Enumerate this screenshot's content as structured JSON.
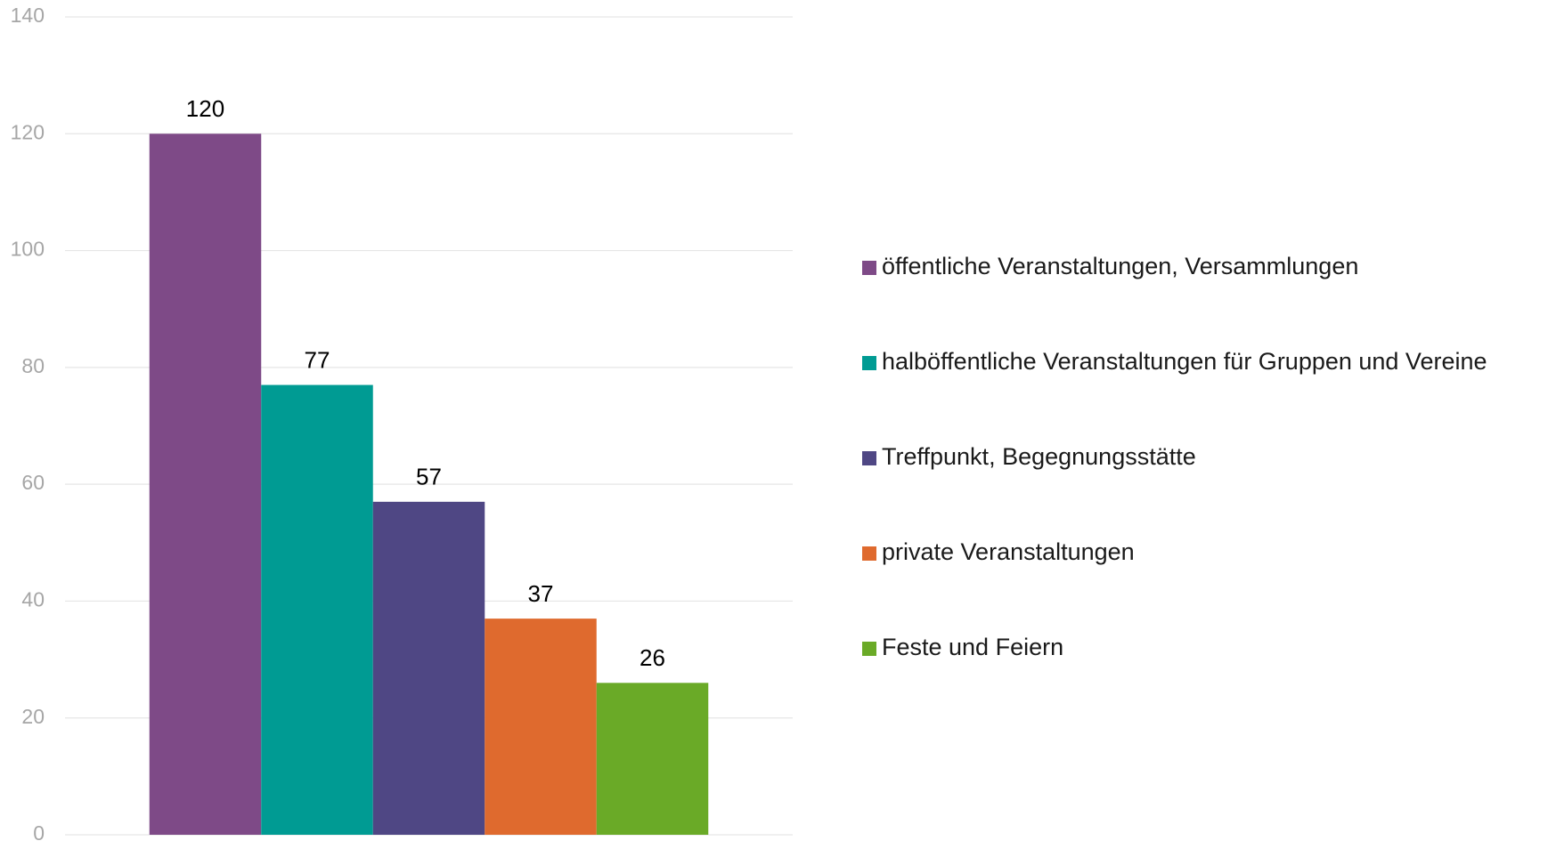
{
  "chart_data": {
    "type": "bar",
    "categories": [
      null
    ],
    "series": [
      {
        "name": "öffentliche Veranstaltungen, Versammlungen",
        "color": "#7e4a87",
        "values": [
          120
        ]
      },
      {
        "name": "halböffentliche Veranstaltungen für Gruppen und Vereine",
        "color": "#009b93",
        "values": [
          77
        ]
      },
      {
        "name": "Treffpunkt, Begegnungsstätte",
        "color": "#4f4784",
        "values": [
          57
        ]
      },
      {
        "name": "private Veranstaltungen",
        "color": "#df6a2e",
        "values": [
          37
        ]
      },
      {
        "name": "Feste und Feiern",
        "color": "#6aaa27",
        "values": [
          26
        ]
      }
    ],
    "ylim": [
      0,
      140
    ],
    "yticks": [
      0,
      20,
      40,
      60,
      80,
      100,
      120,
      140
    ],
    "grid": true,
    "legend": "right"
  }
}
